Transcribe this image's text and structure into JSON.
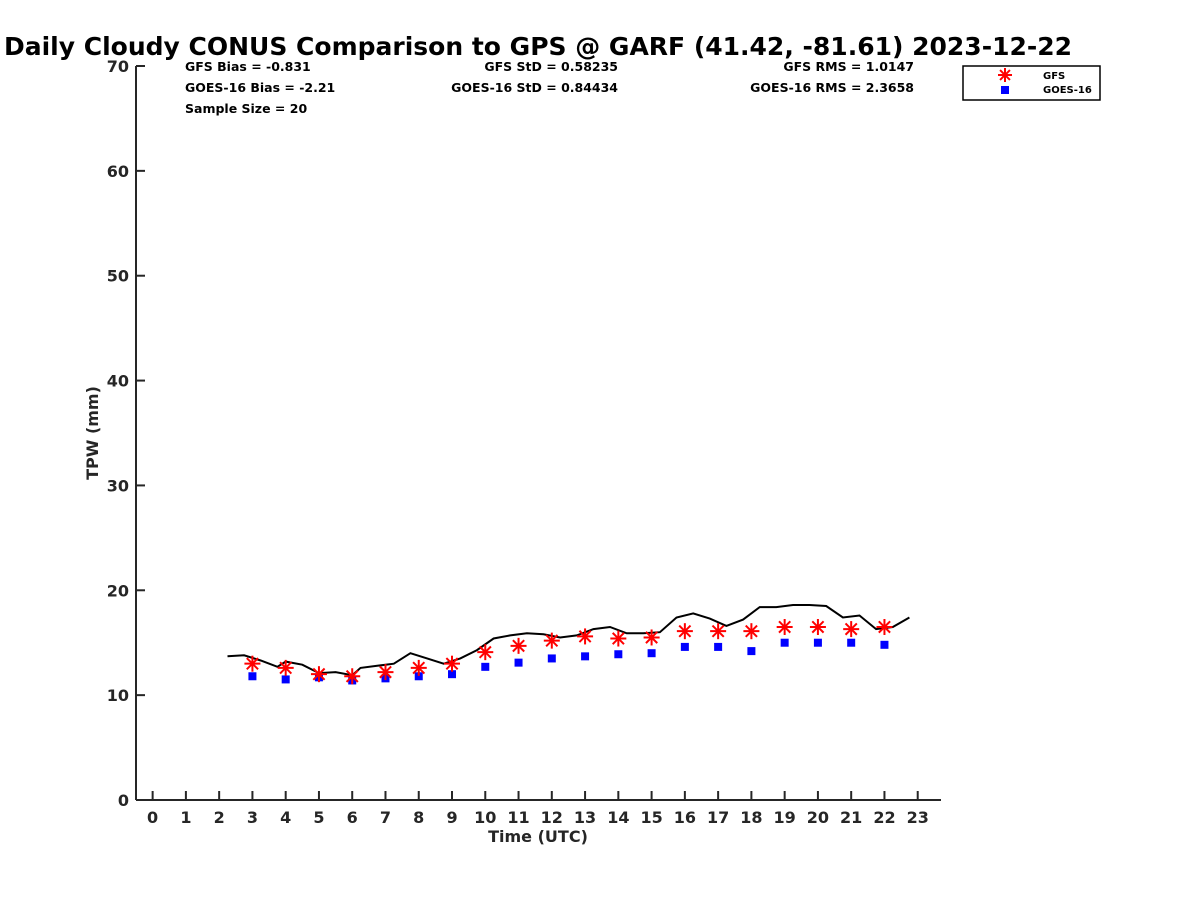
{
  "chart_data": {
    "type": "line",
    "title": "Daily Cloudy CONUS Comparison to GPS @ GARF (41.42, -81.61) 2023-12-22",
    "xlabel": "Time (UTC)",
    "ylabel": "TPW (mm)",
    "xlim": [
      -0.5,
      23.7
    ],
    "ylim": [
      0,
      70
    ],
    "x_ticks": [
      0,
      1,
      2,
      3,
      4,
      5,
      6,
      7,
      8,
      9,
      10,
      11,
      12,
      13,
      14,
      15,
      16,
      17,
      18,
      19,
      20,
      21,
      22,
      23
    ],
    "y_ticks": [
      0,
      10,
      20,
      30,
      40,
      50,
      60,
      70
    ],
    "grid": false,
    "legend_position": "top-right",
    "stats": {
      "gfs_bias": "GFS Bias = -0.831",
      "goes_bias": "GOES-16 Bias = -2.21",
      "sample_size": "Sample Size = 20",
      "gfs_std": "GFS StD = 0.58235",
      "goes_std": "GOES-16 StD = 0.84434",
      "gfs_rms": "GFS RMS = 1.0147",
      "goes_rms": "GOES-16 RMS = 2.3658"
    },
    "series": [
      {
        "type": "line",
        "color": "#000000",
        "x": [
          2.25,
          2.75,
          3.25,
          3.75,
          4.0,
          4.5,
          5.0,
          5.5,
          6.0,
          6.25,
          6.75,
          7.25,
          7.75,
          8.25,
          8.75,
          9.25,
          9.75,
          10.25,
          10.75,
          11.25,
          11.75,
          12.25,
          12.75,
          13.25,
          13.75,
          14.25,
          14.75,
          15.25,
          15.75,
          16.25,
          16.75,
          17.25,
          17.75,
          18.25,
          18.75,
          19.25,
          19.75,
          20.25,
          20.75,
          21.25,
          21.75,
          22.25,
          22.75
        ],
        "y": [
          13.7,
          13.8,
          13.3,
          12.7,
          13.2,
          12.9,
          12.1,
          12.2,
          11.9,
          12.6,
          12.8,
          13.0,
          14.0,
          13.5,
          13.0,
          13.5,
          14.3,
          15.4,
          15.7,
          15.9,
          15.8,
          15.5,
          15.7,
          16.3,
          16.5,
          15.9,
          15.9,
          16.0,
          17.4,
          17.8,
          17.3,
          16.6,
          17.2,
          18.4,
          18.4,
          18.6,
          18.6,
          18.5,
          17.4,
          17.6,
          16.3,
          16.5,
          17.4
        ]
      },
      {
        "name": "GFS",
        "type": "scatter",
        "marker": "asterisk",
        "color": "#ff0000",
        "x": [
          3,
          4,
          5,
          6,
          7,
          8,
          9,
          10,
          11,
          12,
          13,
          14,
          15,
          16,
          17,
          18,
          19,
          20,
          21,
          22
        ],
        "y": [
          13.0,
          12.6,
          12.0,
          11.8,
          12.2,
          12.6,
          13.0,
          14.1,
          14.7,
          15.2,
          15.6,
          15.4,
          15.5,
          16.1,
          16.1,
          16.1,
          16.5,
          16.5,
          16.3,
          16.5
        ]
      },
      {
        "name": "GOES-16",
        "type": "scatter",
        "marker": "square",
        "color": "#0000ff",
        "x": [
          3,
          4,
          5,
          6,
          7,
          8,
          9,
          10,
          11,
          12,
          13,
          14,
          15,
          16,
          17,
          18,
          19,
          20,
          21,
          22
        ],
        "y": [
          11.8,
          11.5,
          11.7,
          11.4,
          11.6,
          11.8,
          12.0,
          12.7,
          13.1,
          13.5,
          13.7,
          13.9,
          14.0,
          14.6,
          14.6,
          14.2,
          15.0,
          15.0,
          15.0,
          14.8
        ]
      }
    ]
  }
}
